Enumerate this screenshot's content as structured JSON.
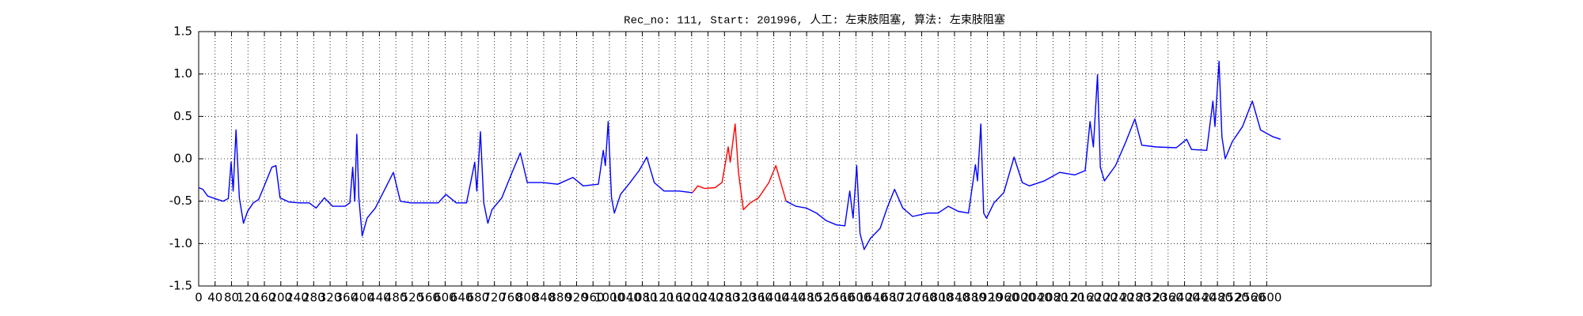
{
  "chart_data": {
    "type": "line",
    "title": "Rec_no: 111, Start: 201996, 人工: 左束肢阻塞, 算法: 左束肢阻塞",
    "xlim": [
      0,
      3000
    ],
    "xticks": [
      0,
      40,
      80,
      120,
      160,
      200,
      240,
      280,
      320,
      360,
      400,
      440,
      480,
      520,
      560,
      600,
      640,
      680,
      720,
      760,
      800,
      840,
      880,
      920,
      960,
      1000,
      1040,
      1080,
      1120,
      1160,
      1200,
      1240,
      1280,
      1320,
      1360,
      1400,
      1440,
      1480,
      1520,
      1560,
      1600,
      1640,
      1680,
      1720,
      1760,
      1800,
      1840,
      1880,
      1920,
      1960,
      2000,
      2040,
      2080,
      2120,
      2160,
      2200,
      2240,
      2280,
      2320,
      2360,
      2400,
      2440,
      2480,
      2520,
      2560,
      2600
    ],
    "ylim": [
      -1.5,
      1.5
    ],
    "yticks": [
      -1.5,
      {
        "value": -1,
        "label": "-1.0"
      },
      -0.5,
      {
        "value": 0,
        "label": "0.0"
      },
      0.5,
      {
        "value": 1,
        "label": "1.0"
      },
      1.5
    ],
    "grid": true,
    "series": [
      {
        "color": "#0000ff",
        "x": [
          0,
          10,
          22,
          40,
          59,
          72,
          79,
          84,
          91,
          99,
          109,
          119,
          133,
          146,
          163,
          178,
          188,
          198,
          220,
          244,
          269,
          286,
          306,
          326,
          356,
          368,
          375,
          380,
          385,
          390,
          398,
          410,
          430,
          449,
          474,
          491,
          516,
          553,
          583,
          602,
          627,
          652,
          672,
          677,
          686,
          694,
          704,
          714,
          738,
          763,
          783,
          800,
          837,
          874,
          911,
          936,
          973,
          985,
          990,
          997,
          1005,
          1012,
          1027,
          1047,
          1072,
          1091,
          1109,
          1133,
          1170,
          1202
        ],
        "values": [
          -0.34,
          -0.36,
          -0.44,
          -0.47,
          -0.5,
          -0.47,
          -0.04,
          -0.38,
          0.34,
          -0.46,
          -0.76,
          -0.62,
          -0.52,
          -0.48,
          -0.28,
          -0.1,
          -0.08,
          -0.46,
          -0.51,
          -0.52,
          -0.52,
          -0.58,
          -0.46,
          -0.56,
          -0.56,
          -0.52,
          -0.1,
          -0.5,
          0.29,
          -0.46,
          -0.91,
          -0.7,
          -0.58,
          -0.4,
          -0.16,
          -0.5,
          -0.52,
          -0.52,
          -0.52,
          -0.42,
          -0.52,
          -0.52,
          -0.04,
          -0.38,
          0.32,
          -0.52,
          -0.76,
          -0.6,
          -0.46,
          -0.16,
          0.07,
          -0.28,
          -0.28,
          -0.3,
          -0.22,
          -0.32,
          -0.3,
          0.1,
          -0.08,
          0.44,
          -0.46,
          -0.64,
          -0.42,
          -0.3,
          -0.14,
          0.02,
          -0.28,
          -0.38,
          -0.38,
          -0.4
        ]
      },
      {
        "color": "#ff0000",
        "x": [
          1202,
          1215,
          1232,
          1257,
          1274,
          1289,
          1294,
          1306,
          1314,
          1326,
          1343,
          1363,
          1388,
          1405,
          1417,
          1430
        ],
        "values": [
          -0.4,
          -0.32,
          -0.35,
          -0.34,
          -0.28,
          0.14,
          -0.04,
          0.41,
          -0.16,
          -0.6,
          -0.52,
          -0.46,
          -0.28,
          -0.08,
          -0.28,
          -0.5
        ]
      },
      {
        "color": "#0000ff",
        "x": [
          1430,
          1454,
          1479,
          1504,
          1528,
          1553,
          1573,
          1585,
          1593,
          1602,
          1610,
          1620,
          1635,
          1659,
          1676,
          1694,
          1714,
          1738,
          1775,
          1800,
          1825,
          1849,
          1874,
          1891,
          1896,
          1904,
          1911,
          1918,
          1936,
          1960,
          1985,
          2005,
          2022,
          2059,
          2096,
          2133,
          2158,
          2170,
          2178,
          2188,
          2195,
          2205,
          2232,
          2257,
          2279,
          2296,
          2331,
          2380,
          2405,
          2417,
          2454,
          2469,
          2474,
          2484,
          2491,
          2499,
          2516,
          2541,
          2565,
          2585,
          2615,
          2634
        ],
        "values": [
          -0.5,
          -0.56,
          -0.58,
          -0.64,
          -0.73,
          -0.78,
          -0.79,
          -0.38,
          -0.7,
          -0.08,
          -0.88,
          -1.07,
          -0.94,
          -0.82,
          -0.58,
          -0.36,
          -0.58,
          -0.68,
          -0.64,
          -0.64,
          -0.56,
          -0.62,
          -0.64,
          -0.07,
          -0.26,
          0.41,
          -0.64,
          -0.7,
          -0.52,
          -0.4,
          0.02,
          -0.28,
          -0.32,
          -0.26,
          -0.16,
          -0.19,
          -0.14,
          0.44,
          0.14,
          0.99,
          -0.1,
          -0.26,
          -0.08,
          0.2,
          0.47,
          0.16,
          0.14,
          0.13,
          0.23,
          0.11,
          0.1,
          0.68,
          0.38,
          1.15,
          0.26,
          0,
          0.2,
          0.38,
          0.68,
          0.34,
          0.26,
          0.23
        ]
      }
    ]
  }
}
